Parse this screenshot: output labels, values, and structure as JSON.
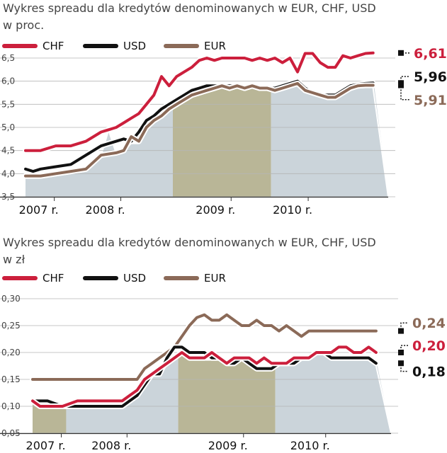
{
  "colors": {
    "CHF": "#cc1f3c",
    "USD": "#111111",
    "EUR": "#8b6a58",
    "olive": "#b9b697",
    "blueGrey": "#cbd4da"
  },
  "chart_data": [
    {
      "type": "line",
      "title_lines": [
        "Wykres spreadu dla kredytów denominowanych w EUR, CHF, USD",
        "w proc."
      ],
      "legend": [
        "CHF",
        "USD",
        "EUR"
      ],
      "legend_placement": "top-left",
      "ylim": [
        3.5,
        6.5
      ],
      "yticks": [
        "3,5",
        "4,0",
        "4,5",
        "5,0",
        "5,5",
        "6,0",
        "6,5"
      ],
      "ytick_values": [
        3.5,
        4.0,
        4.5,
        5.0,
        5.5,
        6.0,
        6.5
      ],
      "xlim": [
        0,
        48
      ],
      "xticks": [
        {
          "label": "2007 r.",
          "pos": 1
        },
        {
          "label": "2008 r.",
          "pos": 9.8
        },
        {
          "label": "2009 r.",
          "pos": 24.4
        },
        {
          "label": "2010 r.",
          "pos": 34.6
        }
      ],
      "bands": [
        {
          "from": 0,
          "to": 19.5,
          "color": "blueGrey"
        },
        {
          "from": 19.5,
          "to": 32.5,
          "color": "olive"
        },
        {
          "from": 32.5,
          "to": 48,
          "color": "blueGrey"
        }
      ],
      "series": [
        {
          "name": "CHF",
          "x": [
            0,
            2,
            4,
            6,
            8,
            10,
            11,
            12,
            13,
            14,
            15,
            16,
            17,
            18,
            19,
            20,
            21,
            22,
            23,
            24,
            25,
            26,
            27,
            28,
            29,
            30,
            31,
            32,
            33,
            34,
            35,
            36,
            37,
            38,
            39,
            40,
            41,
            42,
            43,
            44,
            45,
            46
          ],
          "y": [
            4.5,
            4.5,
            4.6,
            4.6,
            4.7,
            4.9,
            4.95,
            5.0,
            5.1,
            5.2,
            5.3,
            5.5,
            5.7,
            6.1,
            5.9,
            6.1,
            6.2,
            6.3,
            6.45,
            6.5,
            6.45,
            6.5,
            6.5,
            6.5,
            6.5,
            6.45,
            6.5,
            6.45,
            6.5,
            6.4,
            6.5,
            6.2,
            6.6,
            6.6,
            6.4,
            6.3,
            6.3,
            6.55,
            6.5,
            6.55,
            6.6,
            6.61
          ]
        },
        {
          "name": "USD",
          "x": [
            0,
            1,
            2,
            4,
            6,
            8,
            10,
            12,
            13,
            14,
            15,
            16,
            17,
            18,
            19,
            20,
            21,
            22,
            23,
            24,
            25,
            26,
            27,
            28,
            29,
            30,
            31,
            32,
            33,
            34,
            35,
            36,
            37,
            38,
            39,
            40,
            41,
            42,
            43,
            44,
            45,
            46
          ],
          "y": [
            4.1,
            4.05,
            4.1,
            4.15,
            4.2,
            4.4,
            4.6,
            4.7,
            4.75,
            4.7,
            4.9,
            5.15,
            5.25,
            5.4,
            5.5,
            5.6,
            5.7,
            5.8,
            5.85,
            5.9,
            5.9,
            5.9,
            5.9,
            5.9,
            5.85,
            5.9,
            5.85,
            5.85,
            5.85,
            5.9,
            5.95,
            6.0,
            5.85,
            5.75,
            5.7,
            5.7,
            5.7,
            5.8,
            5.9,
            5.93,
            5.95,
            5.96
          ]
        },
        {
          "name": "EUR",
          "x": [
            0,
            2,
            4,
            6,
            8,
            10,
            12,
            13,
            14,
            15,
            16,
            17,
            18,
            19,
            20,
            21,
            22,
            23,
            24,
            25,
            26,
            27,
            28,
            29,
            30,
            31,
            32,
            33,
            34,
            35,
            36,
            37,
            38,
            39,
            40,
            41,
            42,
            43,
            44,
            45,
            46
          ],
          "y": [
            3.95,
            3.95,
            4.0,
            4.05,
            4.1,
            4.4,
            4.45,
            4.5,
            4.8,
            4.7,
            5.0,
            5.15,
            5.25,
            5.4,
            5.5,
            5.6,
            5.7,
            5.75,
            5.8,
            5.85,
            5.9,
            5.85,
            5.9,
            5.85,
            5.9,
            5.85,
            5.85,
            5.8,
            5.85,
            5.9,
            5.95,
            5.8,
            5.75,
            5.7,
            5.65,
            5.65,
            5.75,
            5.85,
            5.9,
            5.91,
            5.91
          ]
        }
      ],
      "end_labels": [
        {
          "series": "CHF",
          "text": "6,61",
          "label_y": 6.61
        },
        {
          "series": "USD",
          "text": "5,96",
          "label_y": 6.1
        },
        {
          "series": "EUR",
          "text": "5,91",
          "label_y": 5.6
        }
      ]
    },
    {
      "type": "line",
      "title_lines": [
        "Wykres spreadu dla kredytów denominowanych w EUR, CHF, USD",
        "w zł"
      ],
      "legend": [
        "CHF",
        "USD",
        "EUR"
      ],
      "legend_placement": "top-left",
      "ylim": [
        0.05,
        0.3
      ],
      "yticks": [
        "0,05",
        "0,10",
        "0,15",
        "0,20",
        "0,25",
        "0,30"
      ],
      "ytick_values": [
        0.05,
        0.1,
        0.15,
        0.2,
        0.25,
        0.3
      ],
      "xlim": [
        0,
        48
      ],
      "xticks": [
        {
          "label": "2007 r.",
          "pos": 1
        },
        {
          "label": "2008 r.",
          "pos": 9.8
        },
        {
          "label": "2009 r.",
          "pos": 25.4
        },
        {
          "label": "2010 r.",
          "pos": 36.4
        }
      ],
      "bands": [
        {
          "from": 0,
          "to": 4.5,
          "color": "olive"
        },
        {
          "from": 4.5,
          "to": 19.5,
          "color": "blueGrey"
        },
        {
          "from": 19.5,
          "to": 32.5,
          "color": "olive"
        },
        {
          "from": 32.5,
          "to": 48,
          "color": "blueGrey"
        }
      ],
      "series": [
        {
          "name": "EUR",
          "x": [
            0,
            4,
            8,
            12,
            14,
            15,
            16,
            17,
            18,
            19,
            20,
            21,
            22,
            23,
            24,
            25,
            26,
            27,
            28,
            29,
            30,
            31,
            32,
            33,
            34,
            35,
            36,
            37,
            38,
            39,
            40,
            41,
            42,
            43,
            44,
            45,
            46
          ],
          "y": [
            0.15,
            0.15,
            0.15,
            0.15,
            0.15,
            0.17,
            0.18,
            0.19,
            0.2,
            0.21,
            0.23,
            0.25,
            0.265,
            0.27,
            0.26,
            0.26,
            0.27,
            0.26,
            0.25,
            0.25,
            0.26,
            0.25,
            0.25,
            0.24,
            0.25,
            0.24,
            0.23,
            0.24,
            0.24,
            0.24,
            0.24,
            0.24,
            0.24,
            0.24,
            0.24,
            0.24,
            0.24
          ]
        },
        {
          "name": "USD",
          "x": [
            0,
            1,
            2,
            4,
            6,
            8,
            10,
            12,
            13,
            14,
            15,
            16,
            17,
            18,
            19,
            20,
            21,
            22,
            23,
            24,
            25,
            26,
            27,
            28,
            29,
            30,
            31,
            32,
            33,
            34,
            35,
            36,
            37,
            38,
            39,
            40,
            41,
            42,
            43,
            44,
            45,
            46
          ],
          "y": [
            0.11,
            0.11,
            0.11,
            0.1,
            0.1,
            0.1,
            0.1,
            0.1,
            0.11,
            0.12,
            0.14,
            0.16,
            0.16,
            0.19,
            0.21,
            0.21,
            0.2,
            0.2,
            0.2,
            0.19,
            0.19,
            0.18,
            0.18,
            0.19,
            0.18,
            0.17,
            0.17,
            0.17,
            0.18,
            0.18,
            0.18,
            0.19,
            0.19,
            0.2,
            0.2,
            0.19,
            0.19,
            0.19,
            0.19,
            0.19,
            0.19,
            0.18
          ]
        },
        {
          "name": "CHF",
          "x": [
            0,
            1,
            2,
            4,
            6,
            8,
            10,
            12,
            13,
            14,
            15,
            16,
            17,
            18,
            19,
            20,
            21,
            22,
            23,
            24,
            25,
            26,
            27,
            28,
            29,
            30,
            31,
            32,
            33,
            34,
            35,
            36,
            37,
            38,
            39,
            40,
            41,
            42,
            43,
            44,
            45,
            46
          ],
          "y": [
            0.11,
            0.1,
            0.1,
            0.1,
            0.11,
            0.11,
            0.11,
            0.11,
            0.12,
            0.13,
            0.15,
            0.16,
            0.17,
            0.18,
            0.19,
            0.2,
            0.19,
            0.19,
            0.19,
            0.2,
            0.19,
            0.18,
            0.19,
            0.19,
            0.19,
            0.18,
            0.19,
            0.18,
            0.18,
            0.18,
            0.19,
            0.19,
            0.19,
            0.2,
            0.2,
            0.2,
            0.21,
            0.21,
            0.2,
            0.2,
            0.21,
            0.2
          ]
        }
      ],
      "end_labels": [
        {
          "series": "EUR",
          "text": "0,24",
          "label_y": 0.255
        },
        {
          "series": "CHF",
          "text": "0,20",
          "label_y": 0.213
        },
        {
          "series": "USD",
          "text": "0,18",
          "label_y": 0.165
        }
      ]
    }
  ]
}
